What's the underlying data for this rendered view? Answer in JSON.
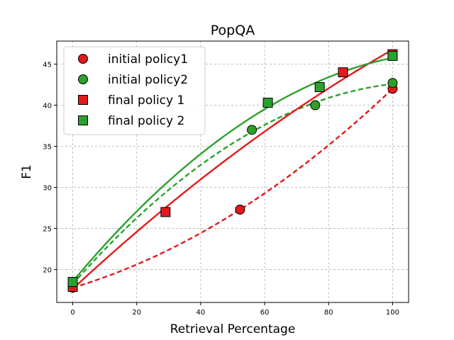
{
  "chart_data": {
    "type": "scatter",
    "title": "PopQA",
    "xlabel": "Retrieval Percentage",
    "ylabel": "F1",
    "xlim": [
      -5,
      105
    ],
    "ylim": [
      16.0,
      47.8
    ],
    "xticks": [
      0,
      20,
      40,
      60,
      80,
      100
    ],
    "yticks": [
      20,
      25,
      30,
      35,
      40,
      45
    ],
    "grid": true,
    "legend_position": "top-left",
    "series": [
      {
        "name": "initial policy1",
        "marker": "circle",
        "color": "#e31a1c",
        "fit_style": "dashed",
        "points": [
          [
            0,
            17.8
          ],
          [
            52.3,
            27.3
          ],
          [
            100,
            42.0
          ]
        ]
      },
      {
        "name": "initial policy2",
        "marker": "circle",
        "color": "#2ca02c",
        "fit_style": "dashed",
        "points": [
          [
            0,
            18.2
          ],
          [
            56.0,
            37.0
          ],
          [
            75.8,
            40.0
          ],
          [
            100,
            42.7
          ]
        ]
      },
      {
        "name": "final policy 1",
        "marker": "square",
        "color": "#e31a1c",
        "fit_style": "solid",
        "points": [
          [
            0,
            17.9
          ],
          [
            29.0,
            27.0
          ],
          [
            84.5,
            44.0
          ],
          [
            100,
            46.2
          ]
        ]
      },
      {
        "name": "final policy 2",
        "marker": "square",
        "color": "#2ca02c",
        "fit_style": "solid",
        "points": [
          [
            0,
            18.5
          ],
          [
            61.0,
            40.3
          ],
          [
            77.2,
            42.2
          ],
          [
            100,
            46.0
          ]
        ]
      }
    ]
  }
}
